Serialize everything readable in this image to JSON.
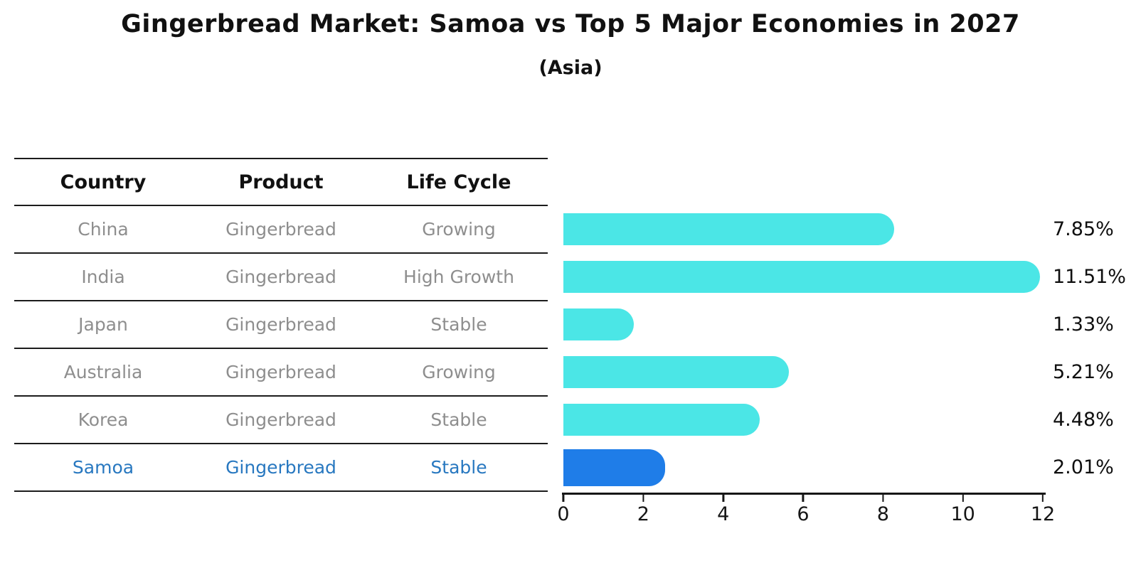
{
  "title": "Gingerbread Market: Samoa vs Top 5 Major Economies in 2027",
  "subtitle": "(Asia)",
  "table": {
    "headers": [
      "Country",
      "Product",
      "Life Cycle"
    ],
    "rows": [
      {
        "country": "China",
        "product": "Gingerbread",
        "life_cycle": "Growing",
        "highlight": false
      },
      {
        "country": "India",
        "product": "Gingerbread",
        "life_cycle": "High Growth",
        "highlight": false
      },
      {
        "country": "Japan",
        "product": "Gingerbread",
        "life_cycle": "Stable",
        "highlight": false
      },
      {
        "country": "Australia",
        "product": "Gingerbread",
        "life_cycle": "Growing",
        "highlight": false
      },
      {
        "country": "Korea",
        "product": "Gingerbread",
        "life_cycle": "Stable",
        "highlight": false
      },
      {
        "country": "Samoa",
        "product": "Gingerbread",
        "life_cycle": "Stable",
        "highlight": true
      }
    ]
  },
  "chart_data": {
    "type": "bar",
    "orientation": "horizontal",
    "title": "Gingerbread Market: Samoa vs Top 5 Major Economies in 2027",
    "subtitle": "(Asia)",
    "categories": [
      "China",
      "India",
      "Japan",
      "Australia",
      "Korea",
      "Samoa"
    ],
    "values": [
      7.85,
      11.51,
      1.33,
      5.21,
      4.48,
      2.01
    ],
    "value_labels": [
      "7.85%",
      "11.51%",
      "1.33%",
      "5.21%",
      "4.48%",
      "2.01%"
    ],
    "unit": "%",
    "xlim": [
      0,
      12
    ],
    "x_ticks": [
      0,
      2,
      4,
      6,
      8,
      10,
      12
    ],
    "x_tick_labels": [
      "0",
      "2",
      "4",
      "6",
      "8",
      "10",
      "12"
    ],
    "grid": false,
    "legend": false,
    "bar_color": "#4BE6E6",
    "highlight_index": 5,
    "highlight_bar_color": "#1F7DE8",
    "highlight_text_color": "#2878C0",
    "axis_color": "#161616",
    "label_color": "#0F0F0F"
  }
}
